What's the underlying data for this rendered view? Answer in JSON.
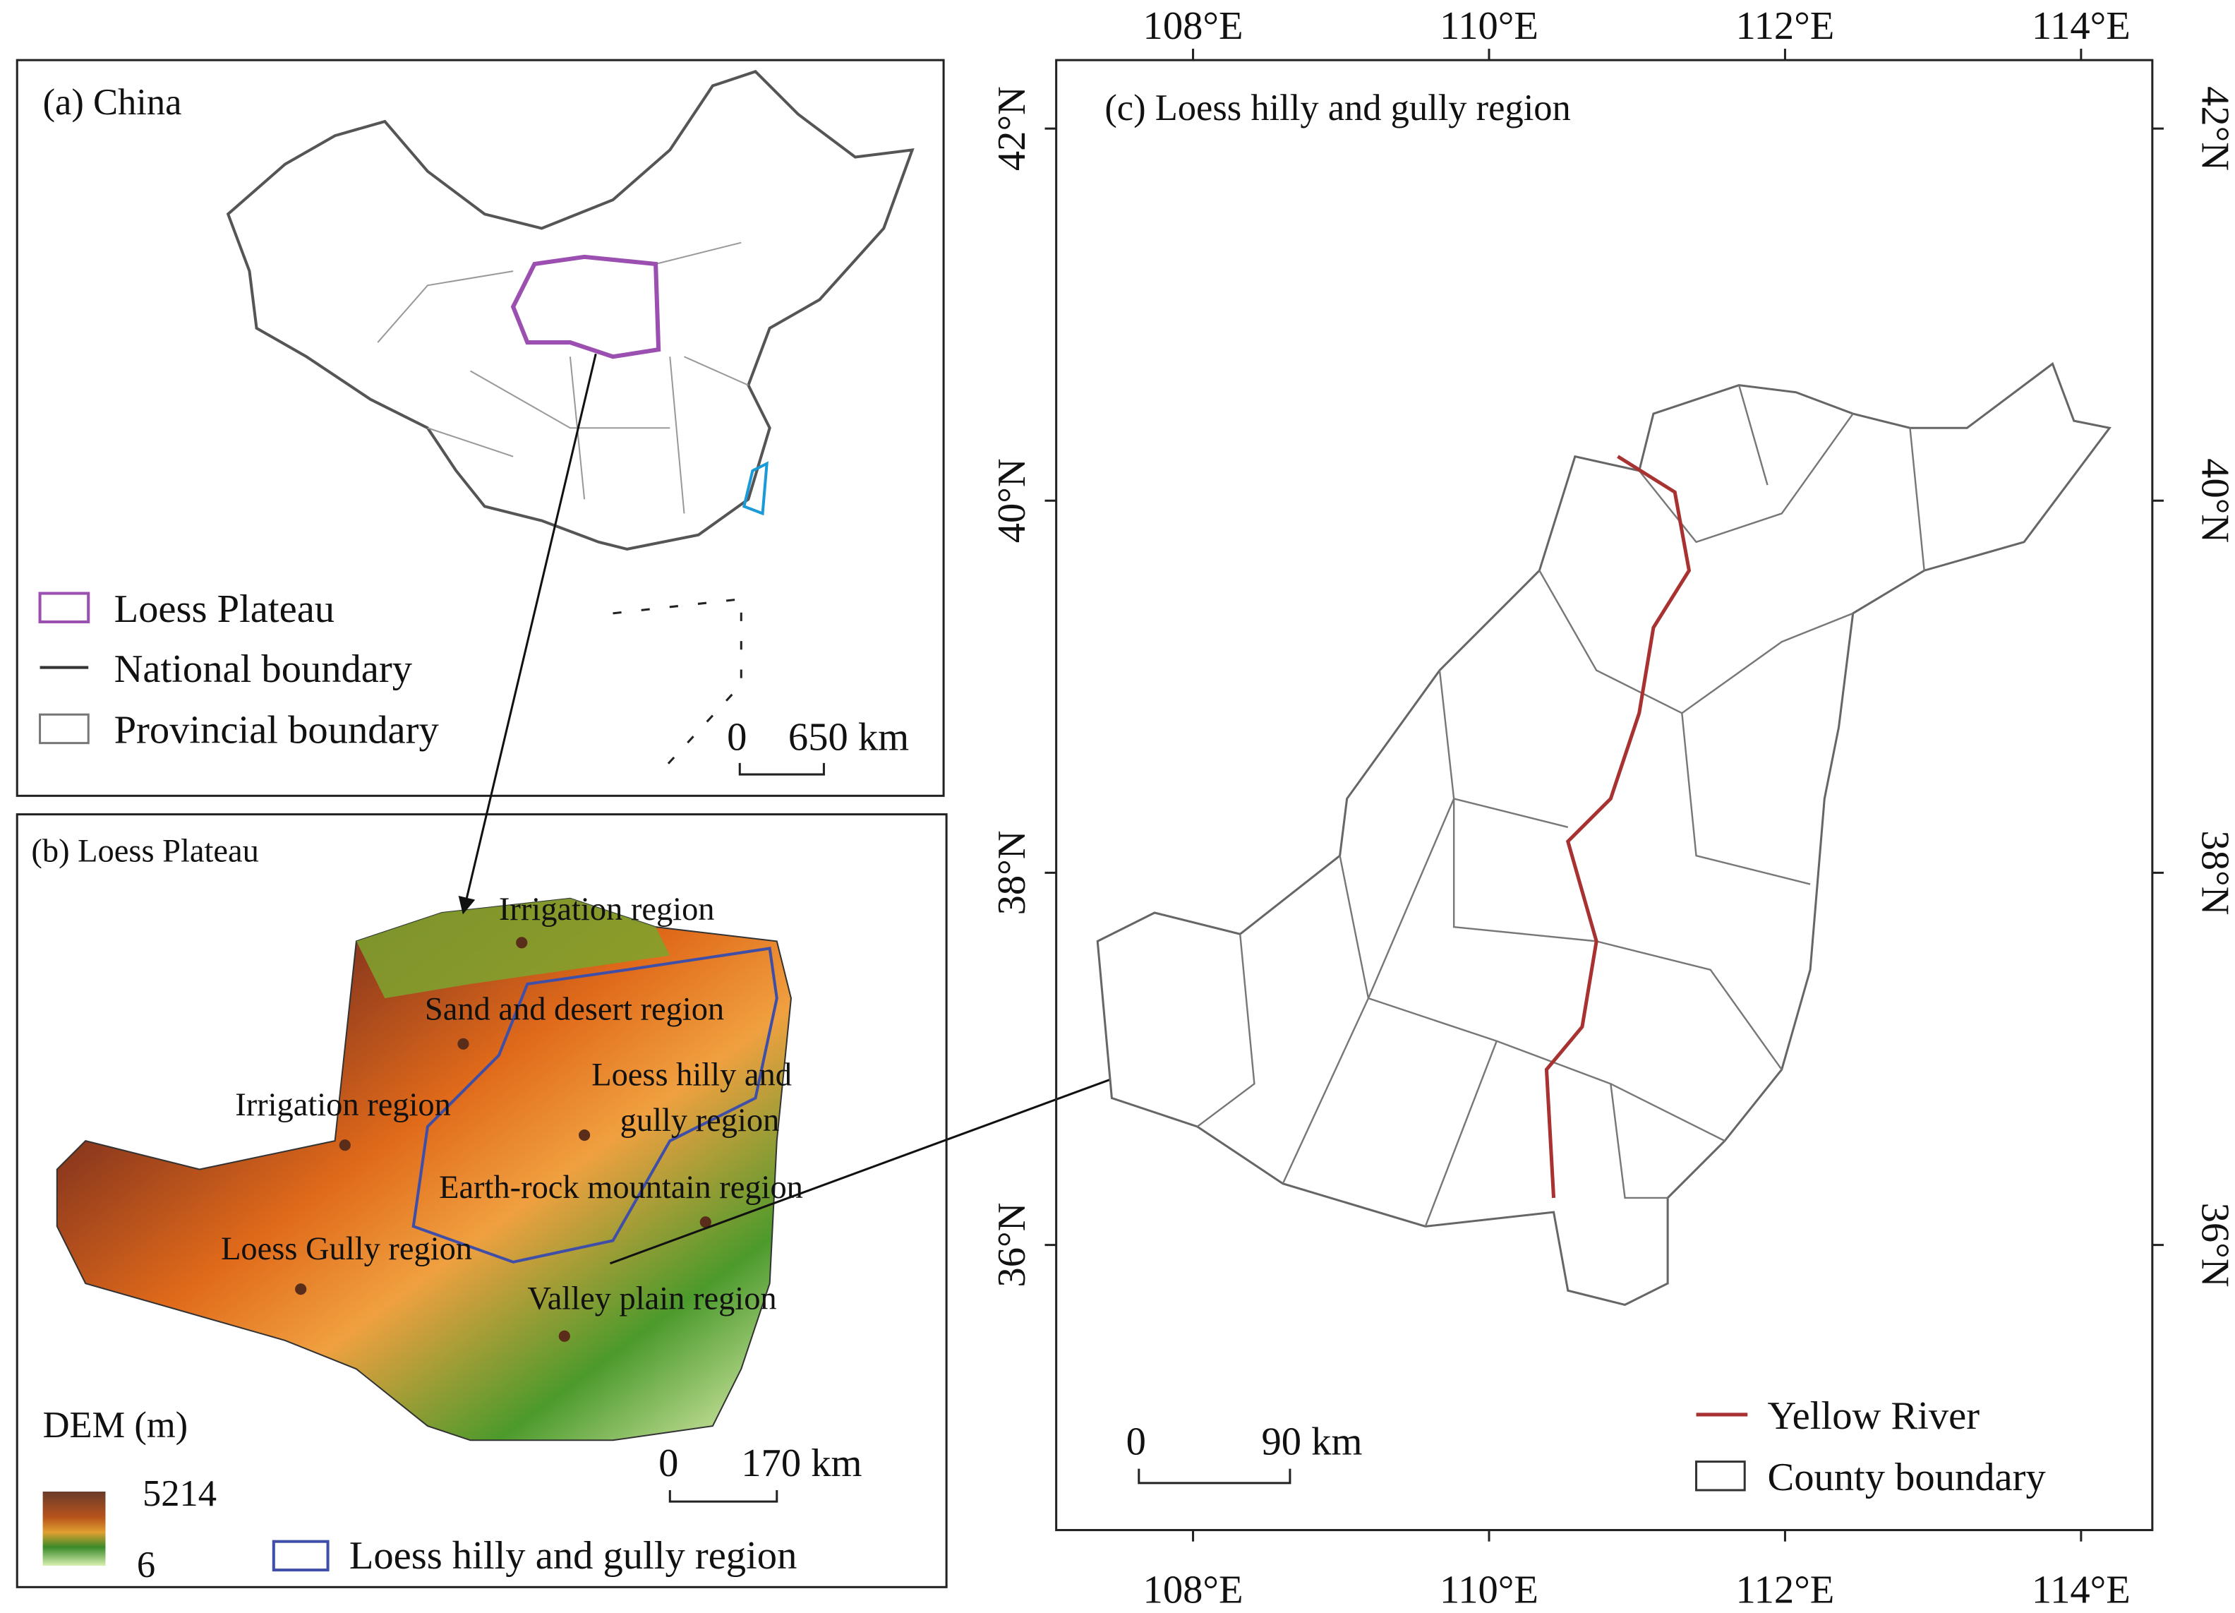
{
  "panel_a": {
    "title": "(a) China",
    "legend": [
      "Loess Plateau",
      "National boundary",
      "Provincial boundary"
    ],
    "scale": {
      "start": "0",
      "end": "650 km"
    }
  },
  "panel_b": {
    "title": "(b) Loess Plateau",
    "regions": [
      "Irrigation region",
      "Sand and desert region",
      "Loess hilly and",
      "gully region",
      "Irrigation region",
      "Earth-rock mountain region",
      "Loess Gully region",
      "Valley plain region"
    ],
    "dem_title": "DEM (m)",
    "dem_max": "5214",
    "dem_min": "6",
    "scale": {
      "start": "0",
      "end": "170 km"
    },
    "legend": "Loess hilly and gully region"
  },
  "panel_c": {
    "title": "(c) Loess hilly and gully region",
    "x_ticks": [
      {
        "value": 108,
        "label": "108°E"
      },
      {
        "value": 110,
        "label": "110°E"
      },
      {
        "value": 112,
        "label": "112°E"
      },
      {
        "value": 114,
        "label": "114°E"
      }
    ],
    "y_ticks": [
      {
        "value": 42,
        "label": "42°N"
      },
      {
        "value": 40,
        "label": "40°N"
      },
      {
        "value": 38,
        "label": "38°N"
      },
      {
        "value": 36,
        "label": "36°N"
      }
    ],
    "legend": [
      "Yellow River",
      "County boundary"
    ],
    "scale": {
      "start": "0",
      "end": "90 km"
    }
  }
}
